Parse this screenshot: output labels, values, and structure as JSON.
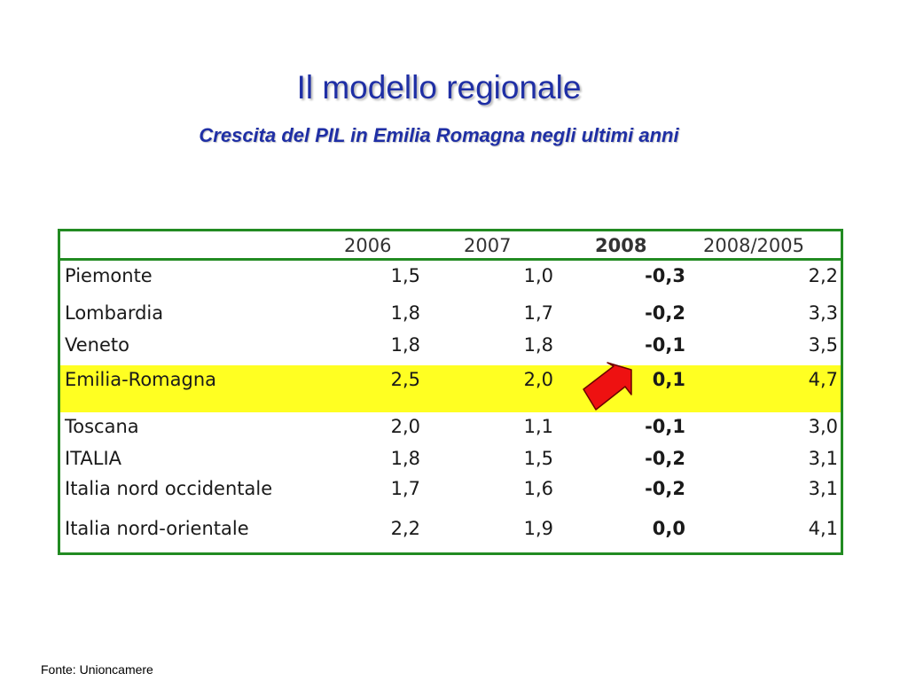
{
  "slide": {
    "title": "Il modello regionale",
    "subtitle": "Crescita del PIL in Emilia Romagna negli ultimi anni",
    "source": "Fonte: Unioncamere"
  },
  "table": {
    "headers": [
      "",
      "2006",
      "2007",
      "2008",
      "2008/2005"
    ],
    "rows": [
      {
        "label": "Piemonte",
        "v2006": "1,5",
        "v2007": "1,0",
        "v2008": "-0,3",
        "v2008_2005": "2,2"
      },
      {
        "label": "Lombardia",
        "v2006": "1,8",
        "v2007": "1,7",
        "v2008": "-0,2",
        "v2008_2005": "3,3"
      },
      {
        "label": "Veneto",
        "v2006": "1,8",
        "v2007": "1,8",
        "v2008": "-0,1",
        "v2008_2005": "3,5"
      },
      {
        "label": "Emilia-Romagna",
        "v2006": "2,5",
        "v2007": "2,0",
        "v2008": "0,1",
        "v2008_2005": "4,7"
      },
      {
        "label": "Toscana",
        "v2006": "2,0",
        "v2007": "1,1",
        "v2008": "-0,1",
        "v2008_2005": "3,0"
      },
      {
        "label": "ITALIA",
        "v2006": "1,8",
        "v2007": "1,5",
        "v2008": "-0,2",
        "v2008_2005": "3,1"
      },
      {
        "label": "Italia nord occidentale",
        "v2006": "1,7",
        "v2007": "1,6",
        "v2008": "-0,2",
        "v2008_2005": "3,1"
      },
      {
        "label": "Italia nord-orientale",
        "v2006": "2,2",
        "v2007": "1,9",
        "v2008": "0,0",
        "v2008_2005": "4,1"
      }
    ]
  },
  "colors": {
    "title": "#1f2fa5",
    "border": "#228b22",
    "highlight": "#ffff22",
    "arrow": "#ee1111"
  },
  "icons": {
    "pointer": "red-arrow-icon"
  }
}
